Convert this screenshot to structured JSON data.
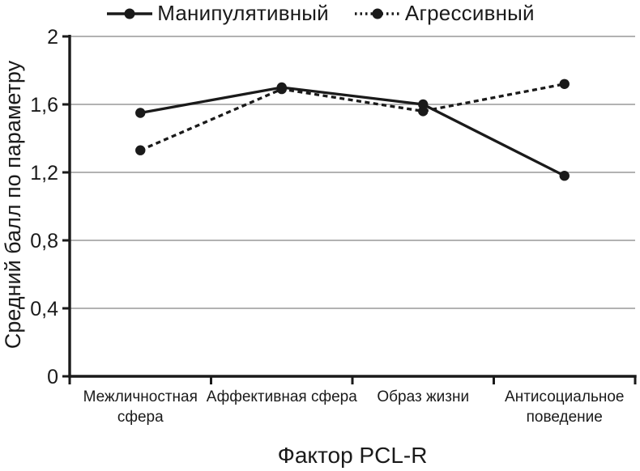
{
  "chart_data": {
    "type": "line",
    "categories": [
      "Межличностная сфера",
      "Аффективная сфера",
      "Образ жизни",
      "Антисоциальное поведение"
    ],
    "series": [
      {
        "name": "Манипулятивный",
        "style": "solid",
        "values": [
          1.55,
          1.7,
          1.6,
          1.18
        ]
      },
      {
        "name": "Агрессивный",
        "style": "dotted",
        "values": [
          1.33,
          1.69,
          1.56,
          1.72
        ]
      }
    ],
    "title": "",
    "xlabel": "Фактор PCL-R",
    "ylabel": "Средний балл по параметру",
    "ylim": [
      0,
      2
    ],
    "yticks": [
      0,
      0.4,
      0.8,
      1.2,
      1.6,
      2
    ],
    "ytick_labels": [
      "0",
      "0,4",
      "0,8",
      "1,2",
      "1,6",
      "2"
    ],
    "grid": true,
    "legend_position": "top"
  },
  "colors": {
    "line": "#1a1a1a",
    "grid": "#999999",
    "text": "#1a1a1a",
    "background": "#ffffff"
  }
}
